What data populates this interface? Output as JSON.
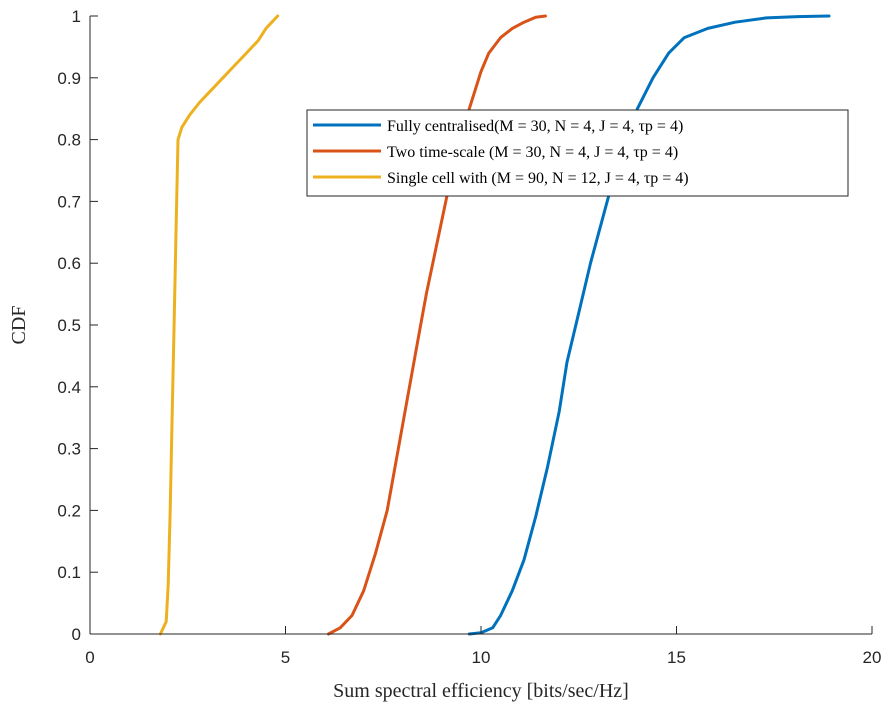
{
  "chart_data": {
    "type": "line",
    "title": "",
    "xlabel": "Sum spectral efficiency [bits/sec/Hz]",
    "ylabel": "CDF",
    "xlim": [
      0,
      20
    ],
    "ylim": [
      0,
      1
    ],
    "xticks": [
      "0",
      "5",
      "10",
      "15",
      "20"
    ],
    "yticks": [
      "0",
      "0.1",
      "0.2",
      "0.3",
      "0.4",
      "0.5",
      "0.6",
      "0.7",
      "0.8",
      "0.9",
      "1"
    ],
    "grid": false,
    "legend_position": "top-right",
    "series": [
      {
        "name": "Fully centralised(M = 30, N = 4, J = 4, τp = 4)",
        "color": "#0072BD",
        "x": [
          9.7,
          10.0,
          10.3,
          10.5,
          10.8,
          11.1,
          11.4,
          11.7,
          12.0,
          12.2,
          12.5,
          12.8,
          13.1,
          13.4,
          13.7,
          14.0,
          14.4,
          14.8,
          15.2,
          15.8,
          16.5,
          17.3,
          18.1,
          18.9
        ],
        "values": [
          0.0,
          0.002,
          0.01,
          0.03,
          0.07,
          0.12,
          0.19,
          0.27,
          0.36,
          0.44,
          0.52,
          0.6,
          0.67,
          0.74,
          0.8,
          0.85,
          0.9,
          0.94,
          0.965,
          0.98,
          0.99,
          0.997,
          0.999,
          1.0
        ]
      },
      {
        "name": "Two time-scale (M = 30, N = 4, J = 4, τp = 4)",
        "color": "#D95319",
        "x": [
          6.1,
          6.4,
          6.7,
          7.0,
          7.3,
          7.6,
          7.8,
          8.0,
          8.2,
          8.4,
          8.6,
          8.8,
          9.0,
          9.2,
          9.4,
          9.6,
          9.8,
          10.0,
          10.2,
          10.5,
          10.8,
          11.1,
          11.4,
          11.65
        ],
        "values": [
          0.0,
          0.01,
          0.03,
          0.07,
          0.13,
          0.2,
          0.27,
          0.34,
          0.41,
          0.48,
          0.55,
          0.61,
          0.67,
          0.73,
          0.78,
          0.83,
          0.87,
          0.91,
          0.94,
          0.965,
          0.98,
          0.99,
          0.998,
          1.0
        ]
      },
      {
        "name": "Single cell with (M = 90, N = 12, J = 4, τp = 4)",
        "color": "#EDB120",
        "x": [
          1.8,
          1.95,
          2.0,
          2.05,
          2.1,
          2.15,
          2.2,
          2.25,
          2.35,
          2.55,
          2.8,
          3.1,
          3.4,
          3.7,
          4.0,
          4.3,
          4.5,
          4.65,
          4.8
        ],
        "values": [
          0.0,
          0.02,
          0.08,
          0.2,
          0.35,
          0.5,
          0.65,
          0.8,
          0.82,
          0.84,
          0.86,
          0.88,
          0.9,
          0.92,
          0.94,
          0.96,
          0.98,
          0.99,
          1.0
        ]
      }
    ]
  }
}
